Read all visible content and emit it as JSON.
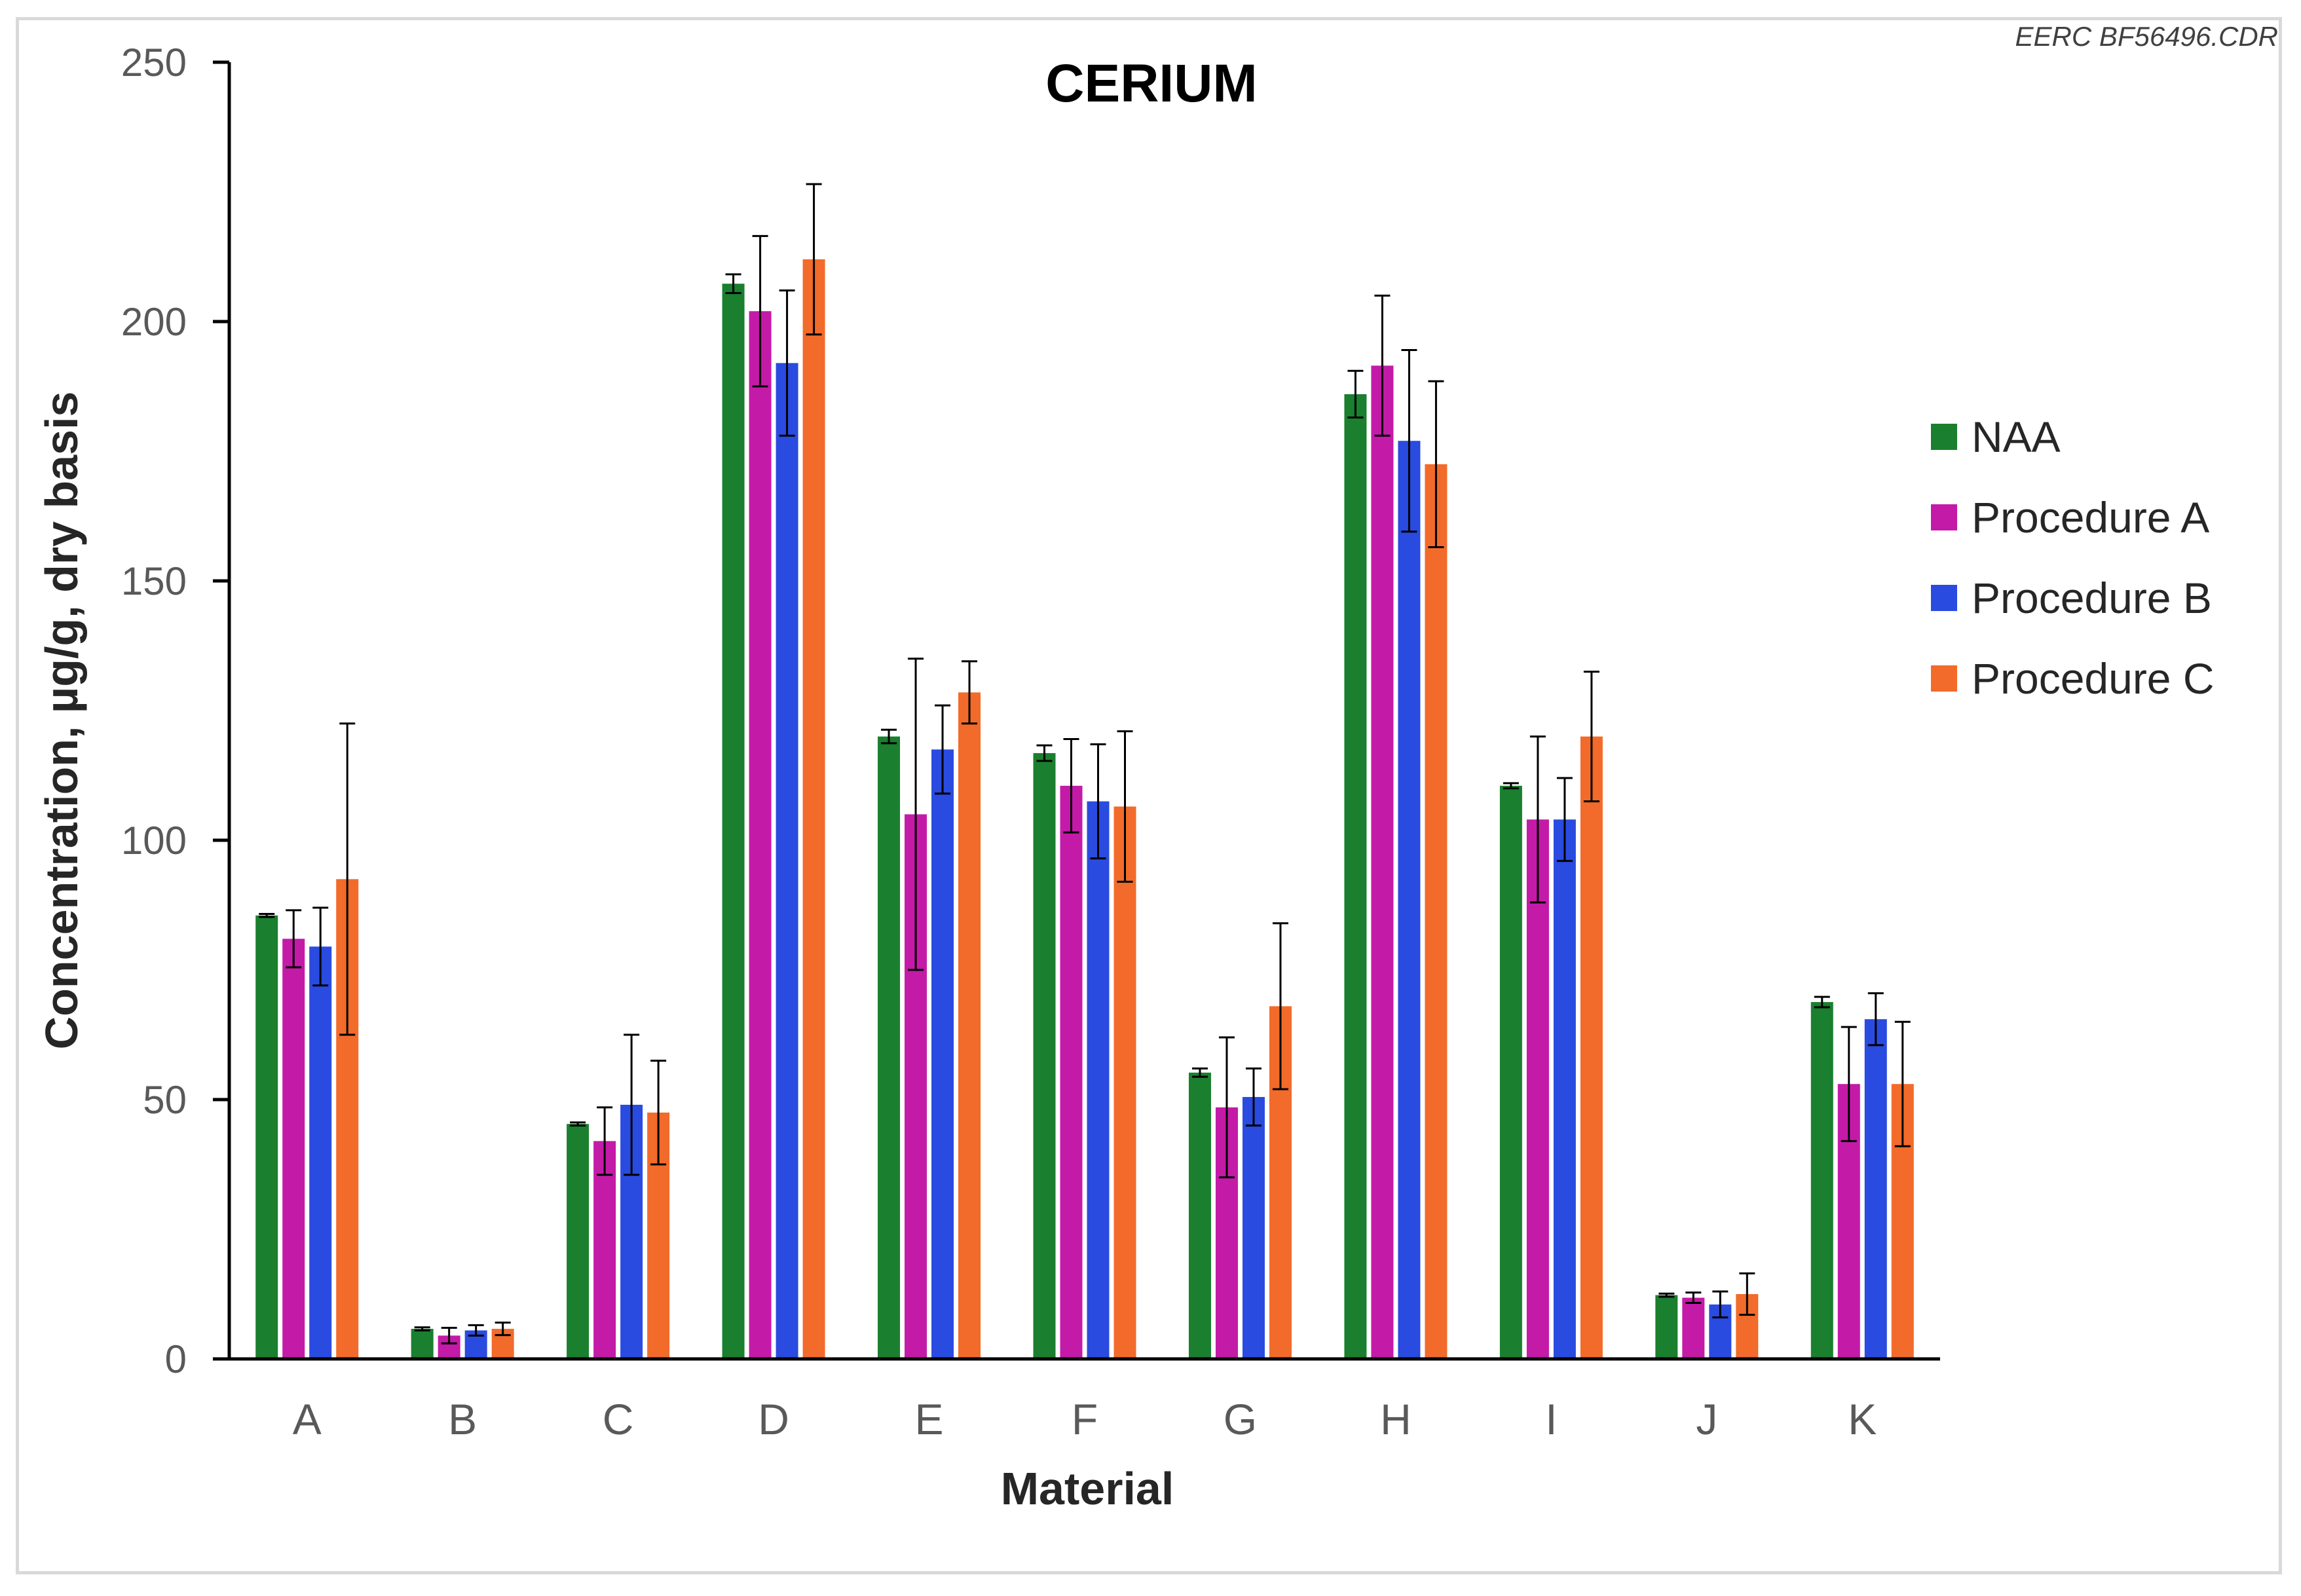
{
  "file_label": "EERC BF56496.CDR",
  "chart_data": {
    "type": "bar",
    "title": "CERIUM",
    "xlabel": "Material",
    "ylabel": "Concentration, µg/g, dry basis",
    "ylim": [
      0,
      250
    ],
    "yticks": [
      0,
      50,
      100,
      150,
      200,
      250
    ],
    "grid": false,
    "legend_position": "right",
    "categories": [
      "A",
      "B",
      "C",
      "D",
      "E",
      "F",
      "G",
      "H",
      "I",
      "J",
      "K"
    ],
    "series": [
      {
        "name": "NAA",
        "color": "#1a7f2e",
        "values": [
          85.5,
          5.8,
          45.3,
          207.3,
          120.0,
          116.8,
          55.2,
          186.0,
          110.5,
          12.3,
          68.8
        ],
        "errors": [
          0.3,
          0.3,
          0.3,
          1.8,
          1.3,
          1.5,
          0.8,
          4.5,
          0.5,
          0.3,
          1.0
        ]
      },
      {
        "name": "Procedure A",
        "color": "#c41aa8",
        "values": [
          81.0,
          4.5,
          42.0,
          202.0,
          105.0,
          110.5,
          48.5,
          191.5,
          104.0,
          11.8,
          53.0
        ],
        "errors": [
          5.5,
          1.5,
          6.5,
          14.5,
          30.0,
          9.0,
          13.5,
          13.5,
          16.0,
          1.0,
          11.0
        ]
      },
      {
        "name": "Procedure B",
        "color": "#2a4be0",
        "values": [
          79.5,
          5.5,
          49.0,
          192.0,
          117.5,
          107.5,
          50.5,
          177.0,
          104.0,
          10.5,
          65.5
        ],
        "errors": [
          7.5,
          1.0,
          13.5,
          14.0,
          8.5,
          11.0,
          5.5,
          17.5,
          8.0,
          2.5,
          5.0
        ]
      },
      {
        "name": "Procedure C",
        "color": "#f26b2a",
        "values": [
          92.5,
          5.8,
          47.5,
          212.0,
          128.5,
          106.5,
          68.0,
          172.5,
          120.0,
          12.5,
          53.0
        ],
        "errors": [
          30.0,
          1.2,
          10.0,
          14.5,
          6.0,
          14.5,
          16.0,
          16.0,
          12.5,
          4.0,
          12.0
        ]
      }
    ]
  }
}
